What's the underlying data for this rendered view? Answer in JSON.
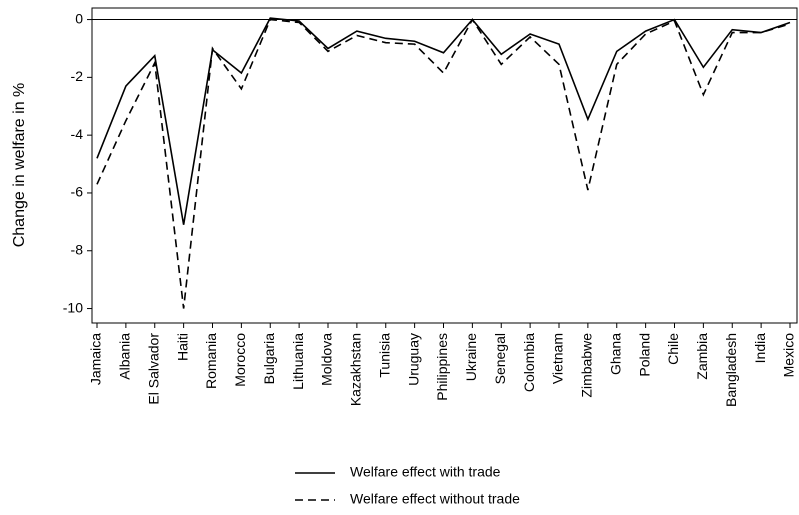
{
  "chart_data": {
    "type": "line",
    "y_label": "Change in welfare in %",
    "categories": [
      "Jamaica",
      "Albania",
      "El Salvador",
      "Haiti",
      "Romania",
      "Morocco",
      "Bulgaria",
      "Lithuania",
      "Moldova",
      "Kazakhstan",
      "Tunisia",
      "Uruguay",
      "Philippines",
      "Ukraine",
      "Senegal",
      "Colombia",
      "Vietnam",
      "Zimbabwe",
      "Ghana",
      "Poland",
      "Chile",
      "Zambia",
      "Bangladesh",
      "India",
      "Mexico"
    ],
    "series": [
      {
        "name": "Welfare effect with trade",
        "color": "#000000",
        "dash": "solid",
        "values": [
          -4.8,
          -2.3,
          -1.25,
          -7.1,
          -1.05,
          -1.85,
          0.05,
          -0.05,
          -1.0,
          -0.4,
          -0.65,
          -0.75,
          -1.15,
          0.0,
          -1.2,
          -0.5,
          -0.85,
          -3.45,
          -1.1,
          -0.4,
          0.0,
          -1.65,
          -0.35,
          -0.45,
          -0.1
        ]
      },
      {
        "name": "Welfare effect without trade",
        "color": "#000000",
        "dash": "dashed",
        "values": [
          -5.7,
          -3.5,
          -1.5,
          -10.0,
          -1.0,
          -2.4,
          0.0,
          -0.1,
          -1.1,
          -0.55,
          -0.8,
          -0.85,
          -1.85,
          0.0,
          -1.55,
          -0.6,
          -1.55,
          -5.9,
          -1.55,
          -0.5,
          -0.05,
          -2.6,
          -0.45,
          -0.45,
          -0.15
        ]
      }
    ],
    "ylim": [
      -10.5,
      0.4
    ],
    "yticks": [
      -10,
      -8,
      -6,
      -4,
      -2,
      0
    ],
    "hline": 0,
    "legend": "bottom"
  }
}
